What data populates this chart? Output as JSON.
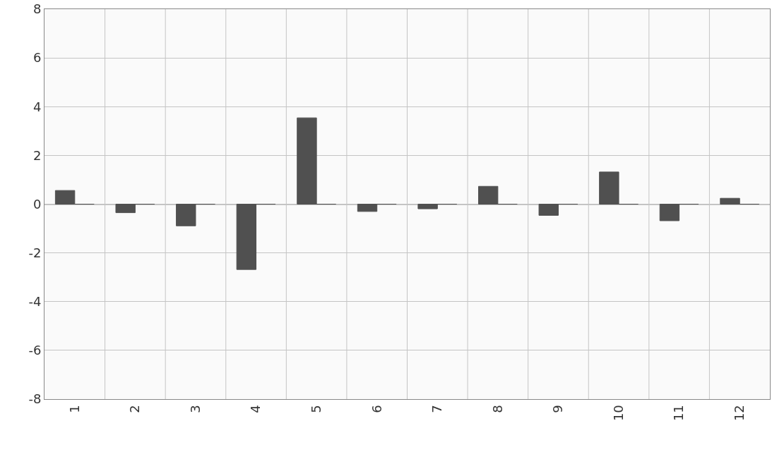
{
  "chart_data": {
    "type": "bar",
    "categories": [
      "1",
      "2",
      "3",
      "4",
      "5",
      "6",
      "7",
      "8",
      "9",
      "10",
      "11",
      "12"
    ],
    "series": [
      {
        "color": "#505050",
        "values": [
          0.56,
          -0.35,
          -0.89,
          -2.68,
          3.54,
          -0.3,
          -0.19,
          0.73,
          -0.46,
          1.32,
          -0.68,
          0.24
        ]
      },
      {
        "color": "#505050",
        "values": [
          0,
          0,
          0,
          0,
          0,
          0,
          0,
          0,
          0,
          0,
          0,
          0
        ]
      }
    ],
    "ylim": [
      -8,
      8
    ],
    "yticks": [
      -8,
      -6,
      -4,
      -2,
      0,
      2,
      4,
      6,
      8
    ],
    "grid": true
  }
}
